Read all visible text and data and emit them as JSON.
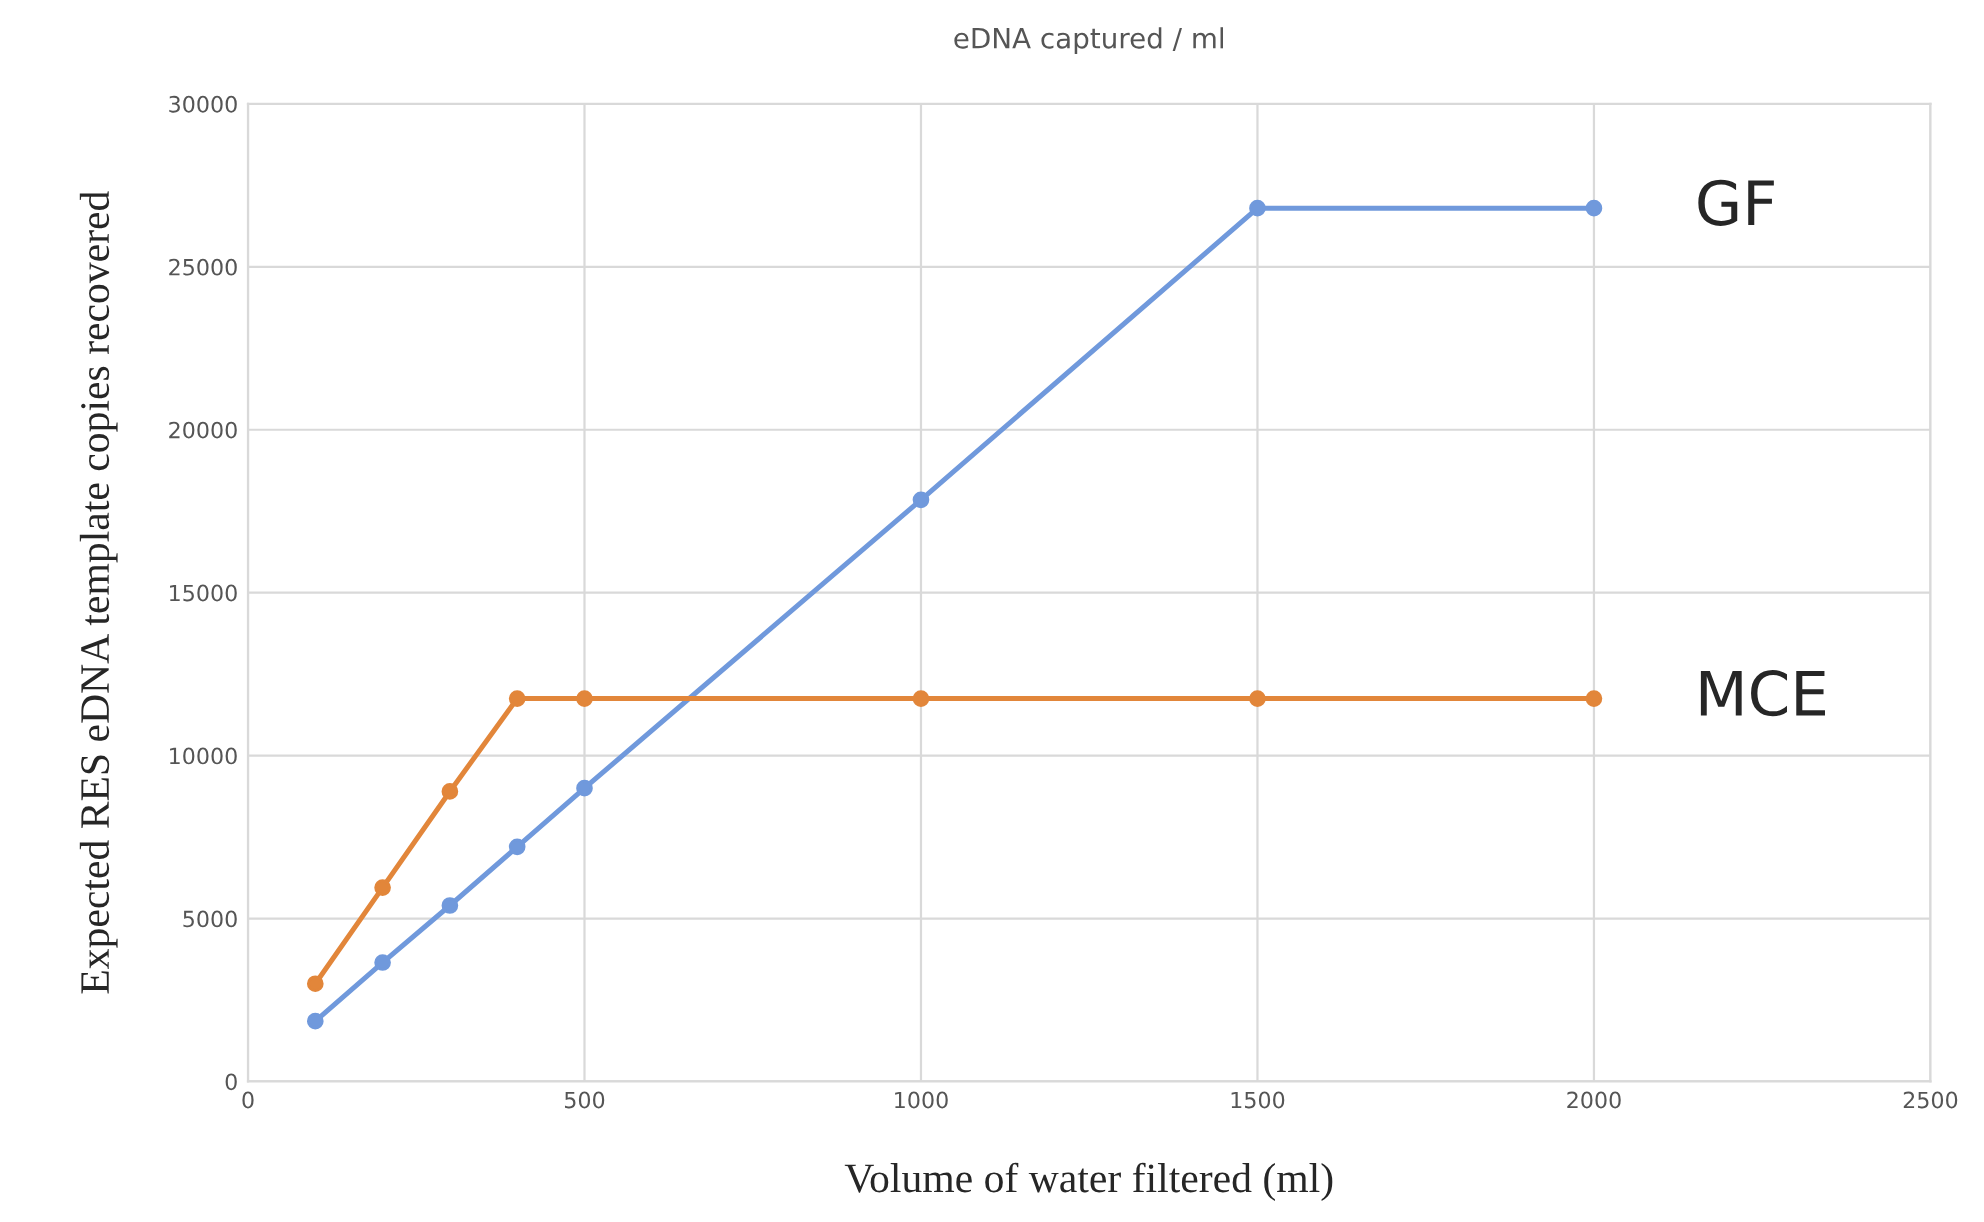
{
  "chart_data": {
    "type": "line",
    "title": "eDNA captured / ml",
    "xlabel": "Volume of water filtered (ml)",
    "ylabel": "Expected RES eDNA template copies recovered",
    "x": [
      100,
      200,
      300,
      400,
      500,
      1000,
      1500,
      2000
    ],
    "series": [
      {
        "name": "GF",
        "color": "#7099dc",
        "values": [
          1850,
          3650,
          5400,
          7200,
          9000,
          17850,
          26800,
          26800
        ]
      },
      {
        "name": "MCE",
        "color": "#e2863a",
        "values": [
          3000,
          5950,
          8900,
          11750,
          11750,
          11750,
          11750,
          11750
        ]
      }
    ],
    "xlim": [
      0,
      2500
    ],
    "xticks": [
      0,
      500,
      1000,
      1500,
      2000,
      2500
    ],
    "ylim": [
      0,
      30000
    ],
    "yticks": [
      0,
      5000,
      10000,
      15000,
      20000,
      25000,
      30000
    ],
    "grid": true,
    "marker": "circle",
    "line_style": "solid"
  }
}
